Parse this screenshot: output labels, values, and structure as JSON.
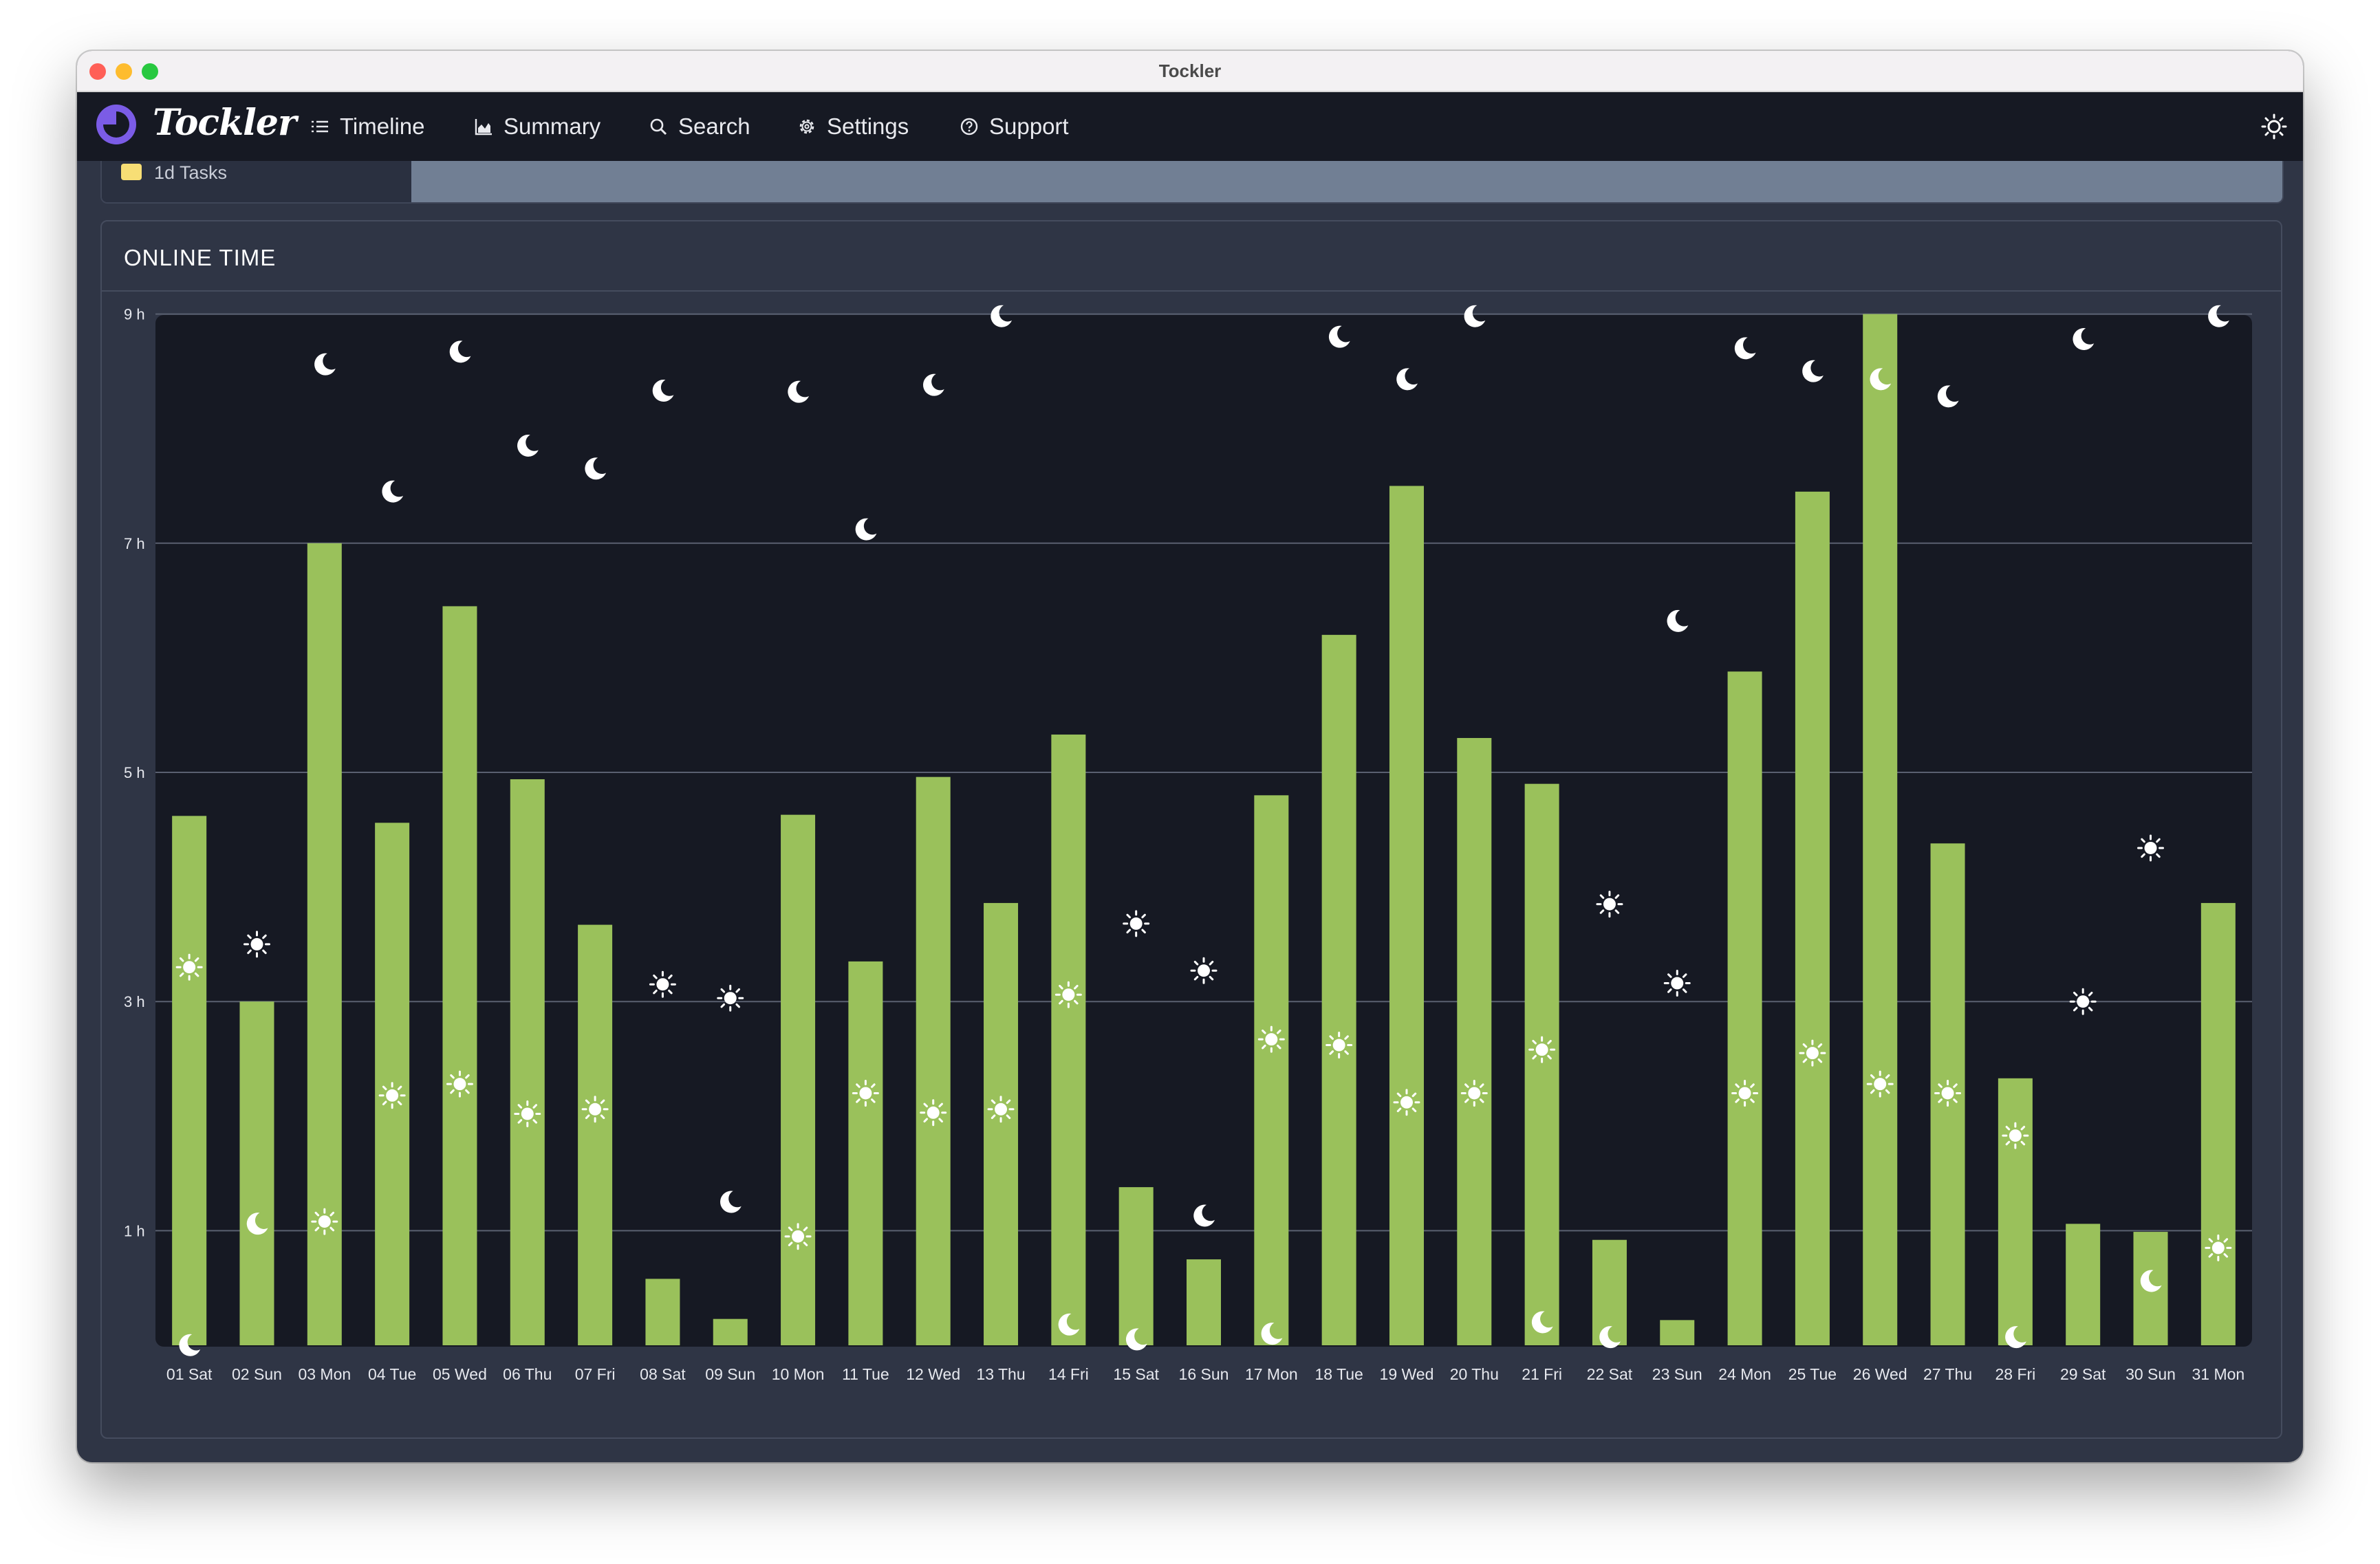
{
  "window": {
    "title": "Tockler"
  },
  "navbar": {
    "logo_text": "Tockler",
    "items": [
      {
        "label": "Timeline",
        "icon": "list-icon"
      },
      {
        "label": "Summary",
        "icon": "area-chart-icon"
      },
      {
        "label": "Search",
        "icon": "search-icon"
      },
      {
        "label": "Settings",
        "icon": "gear-icon"
      },
      {
        "label": "Support",
        "icon": "help-circle-icon"
      }
    ],
    "theme_icon": "sun-icon"
  },
  "top_strip": {
    "tasks_label": "1d  Tasks",
    "chip_color": "#f7de75",
    "bar_color": "#717f94"
  },
  "card": {
    "title": "ONLINE TIME"
  },
  "colors": {
    "bar": "#9ac15b",
    "plot_bg": "#161923",
    "grid": "#5a6070",
    "icon": "#ffffff"
  },
  "chart_data": {
    "type": "bar",
    "unit": "h",
    "y_ticks": [
      1,
      3,
      5,
      7,
      9
    ],
    "y_tick_labels": [
      "1 h",
      "3 h",
      "5 h",
      "7 h",
      "9 h"
    ],
    "ylim": [
      0,
      9
    ],
    "grid": true,
    "categories": [
      "01 Sat",
      "02 Sun",
      "03 Mon",
      "04 Tue",
      "05 Wed",
      "06 Thu",
      "07 Fri",
      "08 Sat",
      "09 Sun",
      "10 Mon",
      "11 Tue",
      "12 Wed",
      "13 Thu",
      "14 Fri",
      "15 Sat",
      "16 Sun",
      "17 Mon",
      "18 Tue",
      "19 Wed",
      "20 Thu",
      "21 Fri",
      "22 Sat",
      "23 Sun",
      "24 Mon",
      "25 Tue",
      "26 Wed",
      "27 Thu",
      "28 Fri",
      "29 Sat",
      "30 Sun",
      "31 Mon"
    ],
    "values": [
      4.62,
      3.0,
      7.0,
      4.56,
      6.45,
      4.94,
      3.67,
      0.58,
      0.23,
      4.63,
      3.35,
      4.96,
      3.86,
      5.33,
      1.38,
      0.75,
      4.8,
      6.2,
      7.5,
      5.3,
      4.9,
      0.92,
      0.22,
      5.88,
      7.45,
      9.0,
      4.38,
      2.33,
      1.06,
      0.99,
      3.86
    ],
    "sunrise_icon_values": [
      3.3,
      3.5,
      1.08,
      2.18,
      2.28,
      2.02,
      2.06,
      3.15,
      3.03,
      0.95,
      2.2,
      2.03,
      2.06,
      3.06,
      3.68,
      3.27,
      2.67,
      2.62,
      2.12,
      2.2,
      2.58,
      3.85,
      3.16,
      2.2,
      2.55,
      2.28,
      2.2,
      1.83,
      3.0,
      4.34,
      0.85
    ],
    "moon_icon_values": [
      0.0,
      1.06,
      8.56,
      7.45,
      8.67,
      7.85,
      7.65,
      8.33,
      1.25,
      8.32,
      7.12,
      8.38,
      8.98,
      0.18,
      0.05,
      1.13,
      0.1,
      8.8,
      8.43,
      8.98,
      0.2,
      0.07,
      6.32,
      8.7,
      8.5,
      8.43,
      8.28,
      0.07,
      8.78,
      0.56,
      8.98
    ]
  }
}
